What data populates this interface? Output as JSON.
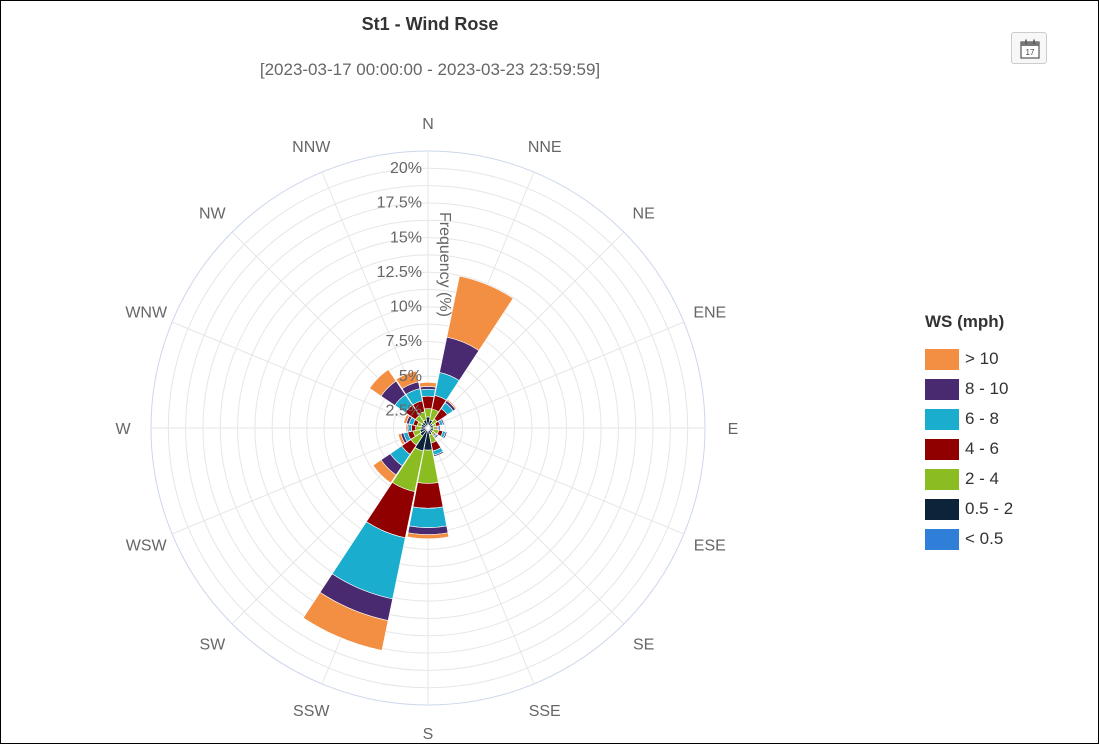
{
  "title": "St1 - Wind Rose",
  "subtitle": "[2023-03-17 00:00:00 - 2023-03-23 23:59:59]",
  "toolbar": {
    "date_button_icon": "calendar-icon",
    "calendar_day": "17"
  },
  "chart_data": {
    "type": "bar",
    "subtype": "polar-stacked (wind rose)",
    "title": "St1 - Wind Rose",
    "subtitle": "[2023-03-17 00:00:00 - 2023-03-23 23:59:59]",
    "radial_axis_label": "Frequency (%)",
    "radial_ticks": [
      "2.5%",
      "5%",
      "7.5%",
      "10%",
      "12.5%",
      "15%",
      "17.5%",
      "20%"
    ],
    "rlim": [
      0,
      20
    ],
    "grid": true,
    "legend_placement": "right",
    "legend_title": "WS (mph)",
    "categories": [
      "N",
      "NNE",
      "NE",
      "ENE",
      "E",
      "ESE",
      "SE",
      "SSE",
      "S",
      "SSW",
      "SW",
      "WSW",
      "W",
      "WNW",
      "NW",
      "NNW"
    ],
    "series": [
      {
        "name": "< 0.5",
        "color": "#2f7ed8",
        "values": [
          0.2,
          0.2,
          0.1,
          0.1,
          0.1,
          0.1,
          0.1,
          0.1,
          0.2,
          0.2,
          0.1,
          0.1,
          0.1,
          0.1,
          0.1,
          0.1
        ]
      },
      {
        "name": "0.5 - 2",
        "color": "#0d233a",
        "values": [
          0.6,
          0.4,
          0.3,
          0.3,
          0.3,
          0.3,
          0.3,
          0.4,
          1.4,
          1.5,
          0.6,
          0.5,
          0.4,
          0.4,
          0.4,
          0.5
        ]
      },
      {
        "name": "2 - 4",
        "color": "#8bbc21",
        "values": [
          0.6,
          0.8,
          0.4,
          0.2,
          0.2,
          0.4,
          0.2,
          0.6,
          2.4,
          3.0,
          0.8,
          0.5,
          0.4,
          0.3,
          0.6,
          0.6
        ]
      },
      {
        "name": "4 - 6",
        "color": "#910000",
        "values": [
          0.9,
          1.0,
          0.9,
          0.3,
          0.1,
          0.3,
          0.1,
          0.6,
          1.8,
          3.4,
          0.8,
          0.4,
          0.3,
          0.3,
          0.9,
          0.8
        ]
      },
      {
        "name": "6 - 8",
        "color": "#1aadce",
        "values": [
          0.5,
          1.7,
          0.5,
          0.2,
          0.1,
          0.2,
          0.1,
          0.3,
          1.4,
          4.5,
          1.0,
          0.3,
          0.2,
          0.3,
          0.9,
          0.9
        ]
      },
      {
        "name": "8 - 10",
        "color": "#492970",
        "values": [
          0.2,
          2.6,
          0.2,
          0.1,
          0.1,
          0.1,
          0.1,
          0.1,
          0.5,
          1.6,
          0.8,
          0.2,
          0.1,
          0.2,
          1.2,
          0.5
        ]
      },
      {
        "name": "> 10",
        "color": "#f28f43",
        "values": [
          0.3,
          4.5,
          0.1,
          0.0,
          0.0,
          0.0,
          0.0,
          0.0,
          0.3,
          2.2,
          0.7,
          0.2,
          0.1,
          0.2,
          1.0,
          0.8
        ]
      }
    ]
  },
  "legend": {
    "title": "WS (mph)",
    "items": [
      {
        "label": "> 10",
        "color": "#f28f43"
      },
      {
        "label": "8 - 10",
        "color": "#492970"
      },
      {
        "label": "6 - 8",
        "color": "#1aadce"
      },
      {
        "label": "4 - 6",
        "color": "#910000"
      },
      {
        "label": "2 - 4",
        "color": "#8bbc21"
      },
      {
        "label": "0.5 - 2",
        "color": "#0d233a"
      },
      {
        "label": "< 0.5",
        "color": "#2f7ed8"
      }
    ]
  }
}
